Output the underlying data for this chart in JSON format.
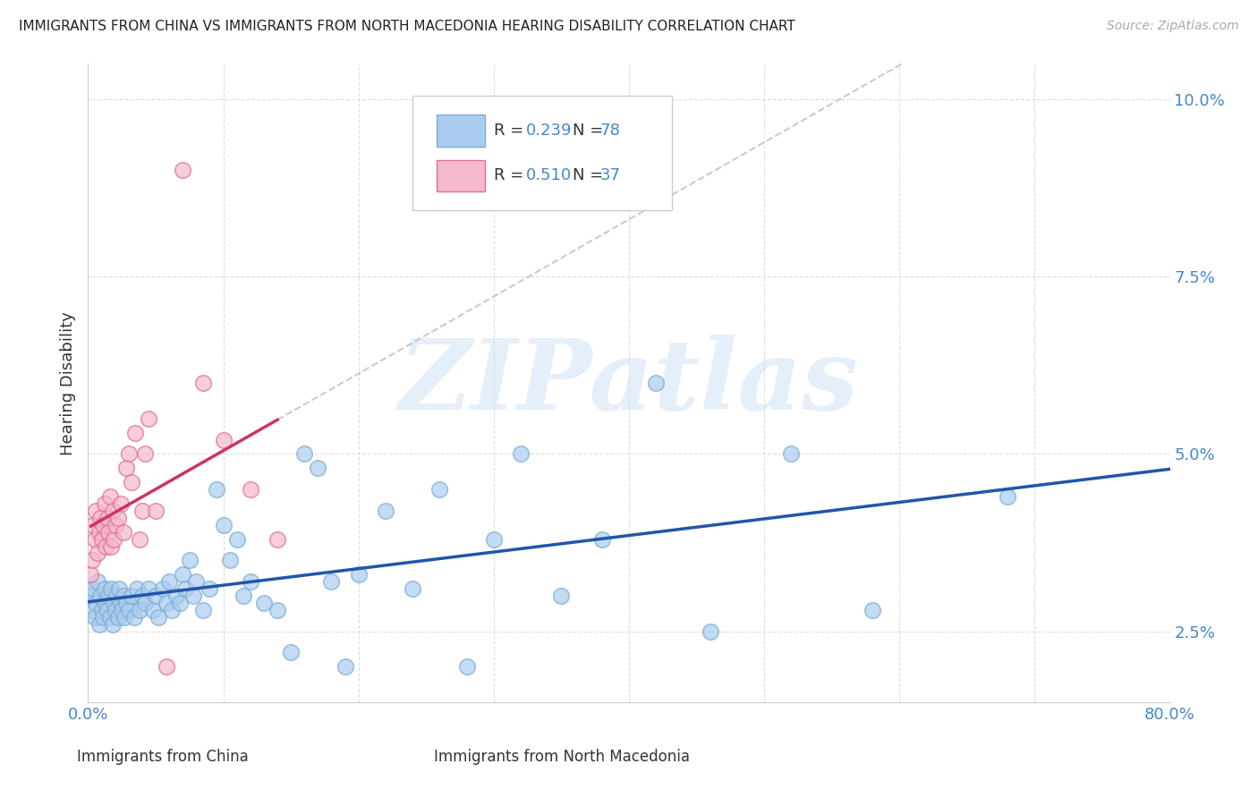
{
  "title": "IMMIGRANTS FROM CHINA VS IMMIGRANTS FROM NORTH MACEDONIA HEARING DISABILITY CORRELATION CHART",
  "source": "Source: ZipAtlas.com",
  "ylabel": "Hearing Disability",
  "xlim": [
    0.0,
    0.8
  ],
  "ylim": [
    0.015,
    0.105
  ],
  "ytick_vals": [
    0.025,
    0.05,
    0.075,
    0.1
  ],
  "ytick_labels": [
    "2.5%",
    "5.0%",
    "7.5%",
    "10.0%"
  ],
  "xtick_vals": [
    0.0,
    0.1,
    0.2,
    0.3,
    0.4,
    0.5,
    0.6,
    0.7,
    0.8
  ],
  "xtick_labels": [
    "0.0%",
    "",
    "",
    "",
    "",
    "",
    "",
    "",
    "80.0%"
  ],
  "china_color": "#aaccee",
  "china_edge_color": "#7aadd4",
  "china_line_color": "#2255aa",
  "macedonia_color": "#f4b8cc",
  "macedonia_edge_color": "#e07090",
  "macedonia_line_color": "#cc3366",
  "R_china": 0.239,
  "N_china": 78,
  "R_macedonia": 0.51,
  "N_macedonia": 37,
  "legend_blue": "#4488cc",
  "watermark_text": "ZIPatlas",
  "watermark_color": "#cce0f5",
  "background_color": "#ffffff",
  "grid_color": "#dddddd",
  "china_x": [
    0.002,
    0.003,
    0.004,
    0.005,
    0.006,
    0.007,
    0.008,
    0.009,
    0.01,
    0.011,
    0.012,
    0.013,
    0.014,
    0.015,
    0.016,
    0.017,
    0.018,
    0.019,
    0.02,
    0.021,
    0.022,
    0.023,
    0.024,
    0.025,
    0.026,
    0.027,
    0.028,
    0.03,
    0.032,
    0.034,
    0.036,
    0.038,
    0.04,
    0.042,
    0.045,
    0.048,
    0.05,
    0.052,
    0.055,
    0.058,
    0.06,
    0.062,
    0.065,
    0.068,
    0.07,
    0.072,
    0.075,
    0.078,
    0.08,
    0.085,
    0.09,
    0.095,
    0.1,
    0.105,
    0.11,
    0.115,
    0.12,
    0.13,
    0.14,
    0.15,
    0.16,
    0.17,
    0.18,
    0.19,
    0.2,
    0.22,
    0.24,
    0.26,
    0.28,
    0.3,
    0.32,
    0.35,
    0.38,
    0.42,
    0.46,
    0.52,
    0.58,
    0.68
  ],
  "china_y": [
    0.03,
    0.028,
    0.031,
    0.027,
    0.029,
    0.032,
    0.026,
    0.03,
    0.028,
    0.027,
    0.031,
    0.029,
    0.028,
    0.03,
    0.027,
    0.031,
    0.026,
    0.029,
    0.028,
    0.03,
    0.027,
    0.031,
    0.029,
    0.028,
    0.03,
    0.027,
    0.029,
    0.028,
    0.03,
    0.027,
    0.031,
    0.028,
    0.03,
    0.029,
    0.031,
    0.028,
    0.03,
    0.027,
    0.031,
    0.029,
    0.032,
    0.028,
    0.03,
    0.029,
    0.033,
    0.031,
    0.035,
    0.03,
    0.032,
    0.028,
    0.031,
    0.045,
    0.04,
    0.035,
    0.038,
    0.03,
    0.032,
    0.029,
    0.028,
    0.022,
    0.05,
    0.048,
    0.032,
    0.02,
    0.033,
    0.042,
    0.031,
    0.045,
    0.02,
    0.038,
    0.05,
    0.03,
    0.038,
    0.06,
    0.025,
    0.05,
    0.028,
    0.044
  ],
  "mac_x": [
    0.002,
    0.003,
    0.004,
    0.005,
    0.006,
    0.007,
    0.008,
    0.009,
    0.01,
    0.011,
    0.012,
    0.013,
    0.014,
    0.015,
    0.016,
    0.017,
    0.018,
    0.019,
    0.02,
    0.022,
    0.024,
    0.026,
    0.028,
    0.03,
    0.032,
    0.035,
    0.038,
    0.04,
    0.042,
    0.045,
    0.05,
    0.058,
    0.07,
    0.085,
    0.1,
    0.12,
    0.14
  ],
  "mac_y": [
    0.033,
    0.035,
    0.04,
    0.038,
    0.042,
    0.036,
    0.039,
    0.041,
    0.038,
    0.04,
    0.043,
    0.037,
    0.041,
    0.039,
    0.044,
    0.037,
    0.042,
    0.038,
    0.04,
    0.041,
    0.043,
    0.039,
    0.048,
    0.05,
    0.046,
    0.053,
    0.038,
    0.042,
    0.05,
    0.055,
    0.042,
    0.02,
    0.09,
    0.06,
    0.052,
    0.045,
    0.038
  ]
}
